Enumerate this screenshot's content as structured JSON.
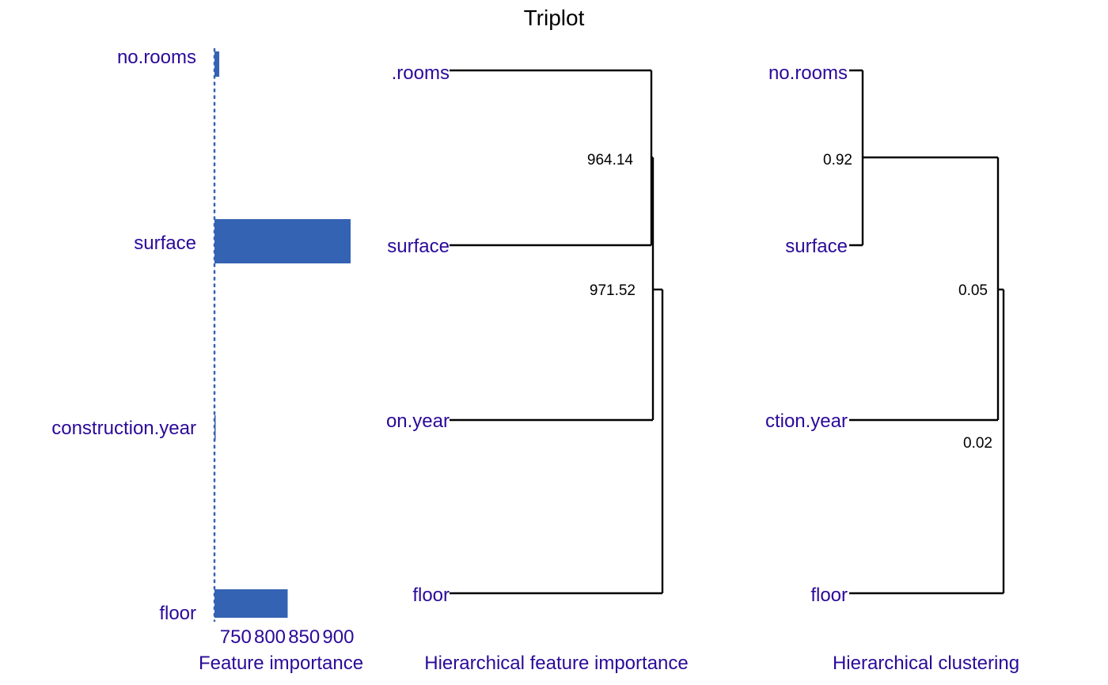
{
  "chart_data": {
    "type": "triplot",
    "title": "Triplot",
    "colors": {
      "bar": "#3563b3",
      "label": "#2a0a99",
      "line": "#000000",
      "baseline": "#3563b3"
    },
    "panels": [
      {
        "type": "bar",
        "orientation": "horizontal",
        "xlabel": "Feature importance",
        "categories": [
          "no.rooms",
          "surface",
          "construction.year",
          "floor"
        ],
        "values": [
          726,
          918,
          720,
          826
        ],
        "baseline": 719,
        "xlim": [
          710,
          945
        ],
        "ticks": [
          750,
          800,
          850,
          900
        ]
      },
      {
        "type": "dendrogram",
        "xlabel": "Hierarchical feature importance",
        "leaves": [
          "no.rooms",
          "surface",
          "construction.year",
          "floor"
        ],
        "leaf_labels": [
          ".rooms",
          "surface",
          "on.year",
          "floor"
        ],
        "merges": [
          {
            "left": "no.rooms",
            "right": "surface",
            "label": "964.14"
          },
          {
            "left": "no.rooms+surface",
            "right": "construction.year",
            "label": ""
          },
          {
            "left": "no.rooms+surface+construction.year",
            "right": "floor",
            "label": "971.52"
          }
        ]
      },
      {
        "type": "dendrogram",
        "xlabel": "Hierarchical clustering",
        "leaves": [
          "no.rooms",
          "surface",
          "construction.year",
          "floor"
        ],
        "leaf_labels": [
          "no.rooms",
          "surface",
          "ction.year",
          "floor"
        ],
        "merges": [
          {
            "left": "no.rooms",
            "right": "surface",
            "label": "0.92"
          },
          {
            "left": "no.rooms+surface",
            "right": "construction.year",
            "label": "0.05"
          },
          {
            "left": "no.rooms+surface+construction.year",
            "right": "floor",
            "label": "0.02"
          }
        ]
      }
    ]
  }
}
